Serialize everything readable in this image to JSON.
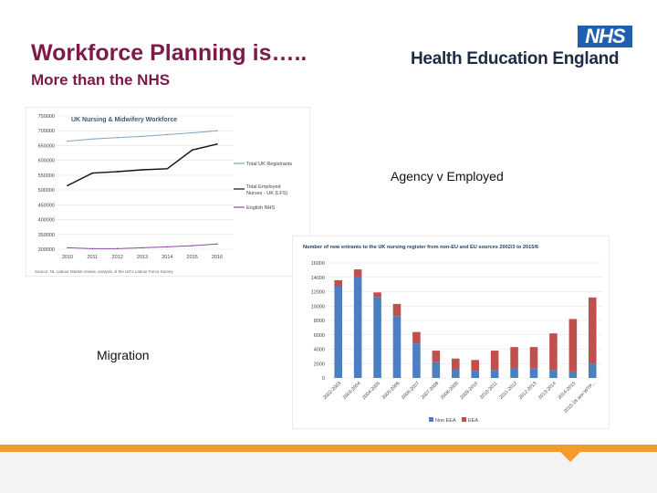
{
  "slide": {
    "title": "Workforce Planning is…..",
    "subtitle": "More than the NHS",
    "logo_text": "NHS",
    "org_name": "Health Education England",
    "label_agency": "Agency v Employed",
    "label_migration": "Migration",
    "colors": {
      "title": "#7b1a4b",
      "nhs_blue": "#1f5fad",
      "accent_orange": "#f39c2c"
    }
  },
  "chart_data": [
    {
      "type": "line",
      "title": "UK Nursing & Midwifery Workforce",
      "x": [
        "2010",
        "2011",
        "2012",
        "2013",
        "2014",
        "2015",
        "2016"
      ],
      "series": [
        {
          "name": "Total UK Registrants",
          "values": [
            665000,
            672000,
            677000,
            681000,
            687000,
            693000,
            700000
          ],
          "color": "#7aa6c2"
        },
        {
          "name": "Total Employed Nurses - UK (LFS)",
          "values": [
            515000,
            557000,
            562000,
            568000,
            572000,
            635000,
            655000
          ],
          "color": "#111111"
        },
        {
          "name": "English NHS",
          "values": [
            305000,
            302000,
            302000,
            305000,
            308000,
            312000,
            318000
          ],
          "color": "#8e4aa3"
        }
      ],
      "ylim": [
        300000,
        750000
      ],
      "yticks": [
        "300000",
        "350000",
        "400000",
        "450000",
        "500000",
        "550000",
        "600000",
        "650000",
        "700000",
        "750000"
      ],
      "source": "Source: NL Labour Market review, analysis of the UK's Labour Force Survey"
    },
    {
      "type": "bar",
      "title": "Number of new entrants to the UK nursing register from non-EU and EU sources 2002/3 to 2015/6",
      "categories": [
        "2002-2003",
        "2003-2004",
        "2004-2005",
        "2005-2006",
        "2006-2007",
        "2007-2008",
        "2008-2009",
        "2009-2010",
        "2010-2011",
        "2011-2012",
        "2012-2013",
        "2013-2014",
        "2014-2015",
        "2015-16 ann WTP..."
      ],
      "series": [
        {
          "name": "Non EEA",
          "values": [
            12700,
            14100,
            11200,
            8600,
            4800,
            2200,
            1200,
            1000,
            1100,
            1400,
            1300,
            1100,
            900,
            2000
          ],
          "color": "#4a7fc1"
        },
        {
          "name": "EEA",
          "values": [
            900,
            1000,
            700,
            1700,
            1600,
            1600,
            1500,
            1500,
            2700,
            2900,
            3000,
            5100,
            7300,
            9200
          ],
          "color": "#c0504d"
        }
      ],
      "ylim": [
        0,
        16000
      ],
      "yticks": [
        "0",
        "2000",
        "4000",
        "6000",
        "8000",
        "10000",
        "12000",
        "14000",
        "16000"
      ]
    }
  ]
}
